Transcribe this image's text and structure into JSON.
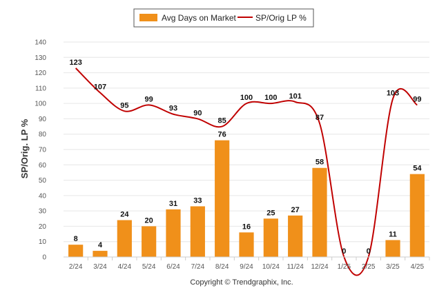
{
  "chart_data": {
    "type": "bar",
    "categories": [
      "2/24",
      "3/24",
      "4/24",
      "5/24",
      "6/24",
      "7/24",
      "8/24",
      "9/24",
      "10/24",
      "11/24",
      "12/24",
      "1/25",
      "2/25",
      "3/25",
      "4/25"
    ],
    "series": [
      {
        "name": "Avg Days on Market",
        "type": "bar",
        "color": "#f0901a",
        "values": [
          8,
          4,
          24,
          20,
          31,
          33,
          76,
          16,
          25,
          27,
          58,
          0,
          0,
          11,
          54
        ]
      },
      {
        "name": "SP/Orig LP %",
        "type": "line",
        "color": "#c00000",
        "values": [
          123,
          107,
          95,
          99,
          93,
          90,
          85,
          100,
          100,
          101,
          87,
          0,
          0,
          103,
          99
        ]
      }
    ],
    "ylabel": "SP/Orig. LP %",
    "ylim": [
      0,
      140
    ],
    "yticks": [
      0,
      10,
      20,
      30,
      40,
      50,
      60,
      70,
      80,
      90,
      100,
      110,
      120,
      130,
      140
    ],
    "grid": true,
    "legend_position": "top-center",
    "footer": "Copyright © Trendgraphix, Inc."
  }
}
